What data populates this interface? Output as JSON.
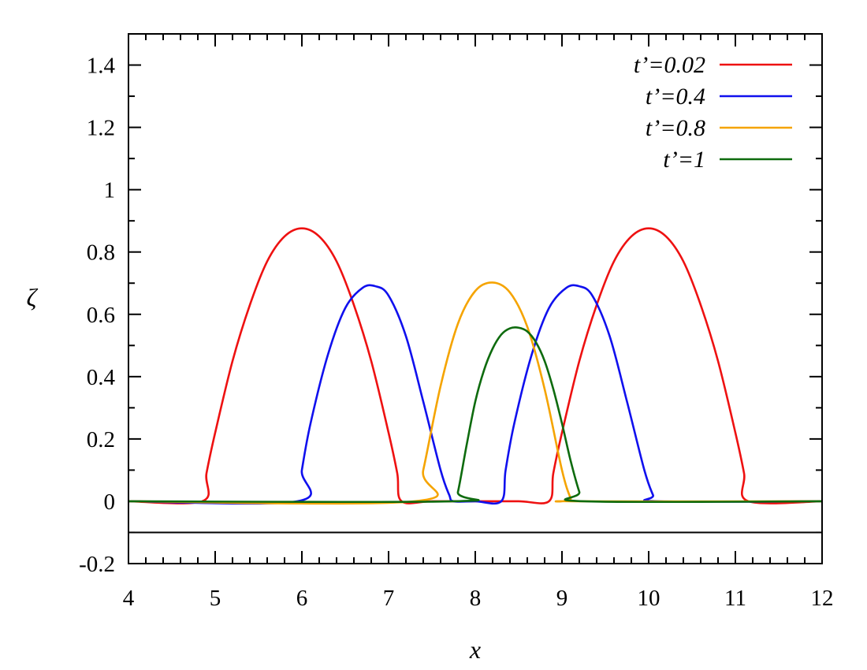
{
  "chart_data": {
    "type": "line",
    "title": "",
    "xlabel": "x",
    "ylabel": "ζ",
    "xlim": [
      4,
      12
    ],
    "ylim": [
      -0.2,
      1.5
    ],
    "xticks": [
      4,
      5,
      6,
      7,
      8,
      9,
      10,
      11,
      12
    ],
    "yticks": [
      -0.2,
      0,
      0.2,
      0.4,
      0.6,
      0.8,
      1,
      1.2,
      1.4
    ],
    "x_tick_labels": [
      "4",
      "5",
      "6",
      "7",
      "8",
      "9",
      "10",
      "11",
      "12"
    ],
    "y_tick_labels": [
      "-0.2",
      "0",
      "0.2",
      "0.4",
      "0.6",
      "0.8",
      "1",
      "1.2",
      "1.4"
    ],
    "grid": false,
    "legend_position": "top-right",
    "reference_line": {
      "y": -0.1,
      "color": "#000000"
    },
    "series": [
      {
        "name": "t’=0.02",
        "color": "#ee1111",
        "x": [
          4.0,
          4.85,
          4.9,
          5.0,
          5.2,
          5.4,
          5.6,
          5.8,
          6.0,
          6.2,
          6.4,
          6.6,
          6.8,
          7.0,
          7.1,
          7.15,
          7.5,
          8.0,
          8.5,
          8.85,
          8.9,
          9.0,
          9.2,
          9.4,
          9.6,
          9.8,
          10.0,
          10.2,
          10.4,
          10.6,
          10.8,
          11.0,
          11.1,
          11.15,
          12.0
        ],
        "y": [
          0,
          0,
          0.09,
          0.22,
          0.45,
          0.63,
          0.77,
          0.85,
          0.876,
          0.85,
          0.77,
          0.63,
          0.45,
          0.22,
          0.09,
          0,
          0,
          0,
          0,
          0,
          0.09,
          0.22,
          0.45,
          0.63,
          0.77,
          0.85,
          0.876,
          0.85,
          0.77,
          0.63,
          0.45,
          0.22,
          0.09,
          0,
          0
        ]
      },
      {
        "name": "t’=0.4",
        "color": "#1010ee",
        "x": [
          4.0,
          5.95,
          6.0,
          6.1,
          6.3,
          6.5,
          6.7,
          6.85,
          7.0,
          7.2,
          7.4,
          7.6,
          7.7,
          7.75,
          8.0,
          8.3,
          8.35,
          8.45,
          8.65,
          8.85,
          9.05,
          9.2,
          9.35,
          9.55,
          9.75,
          9.95,
          10.05,
          10.1,
          12.0
        ],
        "y": [
          0,
          0,
          0.1,
          0.25,
          0.47,
          0.62,
          0.685,
          0.69,
          0.66,
          0.53,
          0.32,
          0.1,
          0.02,
          0,
          0,
          0,
          0.1,
          0.25,
          0.47,
          0.62,
          0.685,
          0.69,
          0.66,
          0.53,
          0.32,
          0.1,
          0.02,
          0,
          0
        ]
      },
      {
        "name": "t’=0.8",
        "color": "#f5a400",
        "x": [
          4.0,
          7.3,
          7.4,
          7.6,
          7.8,
          8.0,
          8.2,
          8.4,
          8.6,
          8.8,
          9.0,
          9.1,
          9.15,
          12.0
        ],
        "y": [
          0,
          0,
          0.1,
          0.37,
          0.57,
          0.675,
          0.702,
          0.67,
          0.56,
          0.36,
          0.1,
          0.01,
          0,
          0
        ]
      },
      {
        "name": "t’=1",
        "color": "#0e6b0e",
        "x": [
          4.0,
          7.75,
          7.8,
          7.9,
          8.0,
          8.1,
          8.2,
          8.3,
          8.4,
          8.5,
          8.6,
          8.7,
          8.8,
          8.9,
          9.0,
          9.1,
          9.2,
          9.25,
          12.0
        ],
        "y": [
          0,
          0,
          0.03,
          0.18,
          0.32,
          0.42,
          0.49,
          0.535,
          0.555,
          0.557,
          0.545,
          0.51,
          0.45,
          0.36,
          0.25,
          0.13,
          0.03,
          0,
          0
        ]
      }
    ]
  }
}
